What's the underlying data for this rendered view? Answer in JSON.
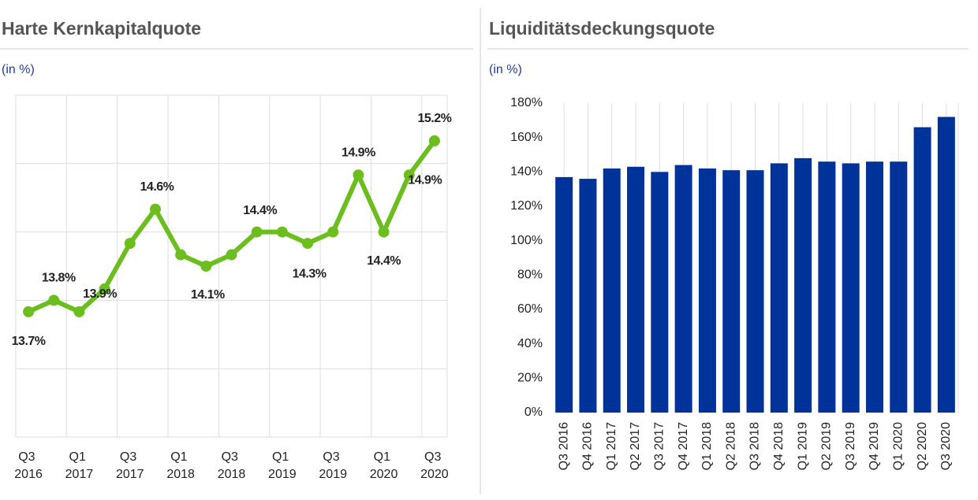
{
  "chart_data": [
    {
      "type": "line",
      "title": "Harte Kernkapitalquote",
      "subtitle": "(in %)",
      "categories": [
        "Q3 2016",
        null,
        "Q1 2017",
        null,
        "Q3 2017",
        null,
        "Q1 2018",
        null,
        "Q3 2018",
        null,
        "Q1 2019",
        null,
        "Q3 2019",
        null,
        "Q1 2020",
        null,
        "Q3 2020"
      ],
      "values": [
        13.7,
        13.8,
        13.7,
        13.9,
        14.3,
        14.6,
        14.2,
        14.1,
        14.2,
        14.4,
        14.4,
        14.3,
        14.4,
        14.9,
        14.4,
        14.9,
        15.2
      ],
      "value_labels": [
        "13.7%",
        "13.8%",
        null,
        "13.9%",
        null,
        "14.6%",
        null,
        "14.1%",
        null,
        "14.4%",
        null,
        "14.3%",
        null,
        "14.9%",
        "14.4%",
        "14.9%",
        "15.2%"
      ],
      "color": "#6cbd1e",
      "ylim": [
        12.6,
        15.6
      ],
      "yticks": [
        12.6,
        13.2,
        13.8,
        14.4,
        15.0,
        15.6
      ],
      "grid": true
    },
    {
      "type": "bar",
      "title": "Liquiditätsdeckungsquote",
      "subtitle": "(in %)",
      "categories": [
        "Q3 2016",
        "Q4 2016",
        "Q1 2017",
        "Q2 2017",
        "Q3 2017",
        "Q4 2017",
        "Q1 2018",
        "Q2 2018",
        "Q3 2018",
        "Q4 2018",
        "Q1 2019",
        "Q2 2019",
        "Q3 2019",
        "Q4 2019",
        "Q1 2020",
        "Q2 2020",
        "Q3 2020"
      ],
      "values": [
        137,
        136,
        142,
        143,
        140,
        144,
        142,
        141,
        141,
        145,
        148,
        146,
        145,
        146,
        146,
        166,
        172
      ],
      "color": "#003399",
      "ylim": [
        0,
        180
      ],
      "yticks": [
        {
          "value": 0,
          "label": "0%"
        },
        {
          "value": 20,
          "label": "20%"
        },
        {
          "value": 40,
          "label": "40%"
        },
        {
          "value": 60,
          "label": "60%"
        },
        {
          "value": 80,
          "label": "80%"
        },
        {
          "value": 100,
          "label": "100%"
        },
        {
          "value": 120,
          "label": "120%"
        },
        {
          "value": 140,
          "label": "140%"
        },
        {
          "value": 160,
          "label": "160%"
        },
        {
          "value": 180,
          "label": "180%"
        }
      ],
      "grid": true
    }
  ]
}
